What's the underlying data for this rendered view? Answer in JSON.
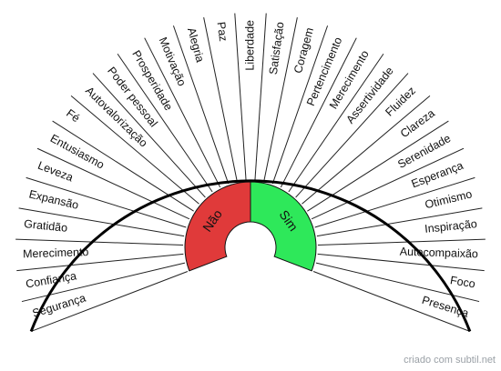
{
  "segments": [
    "Segurança",
    "Confiança",
    "Merecimento",
    "Gratidão",
    "Expansão",
    "Leveza",
    "Entusiasmo",
    "Fé",
    "Autovalorização",
    "Poder pessoal",
    "Prosperidade",
    "Motivação",
    "Alegria",
    "Paz",
    "Liberdade",
    "Satisfação",
    "Coragem",
    "Pertencimento",
    "Merecimento",
    "Assertividade",
    "Fluidez",
    "Clareza",
    "Serenidade",
    "Esperança",
    "Otimismo",
    "Inspiração",
    "Autocompaixão",
    "Foco",
    "Presença"
  ],
  "hub": {
    "left_label": "Não",
    "right_label": "Sim",
    "left_color": "#e03a3a",
    "right_color": "#2ee85a"
  },
  "colors": {
    "lines": "#222222",
    "rim": "#000000"
  },
  "footer": {
    "credit": "criado com subtil.net"
  }
}
